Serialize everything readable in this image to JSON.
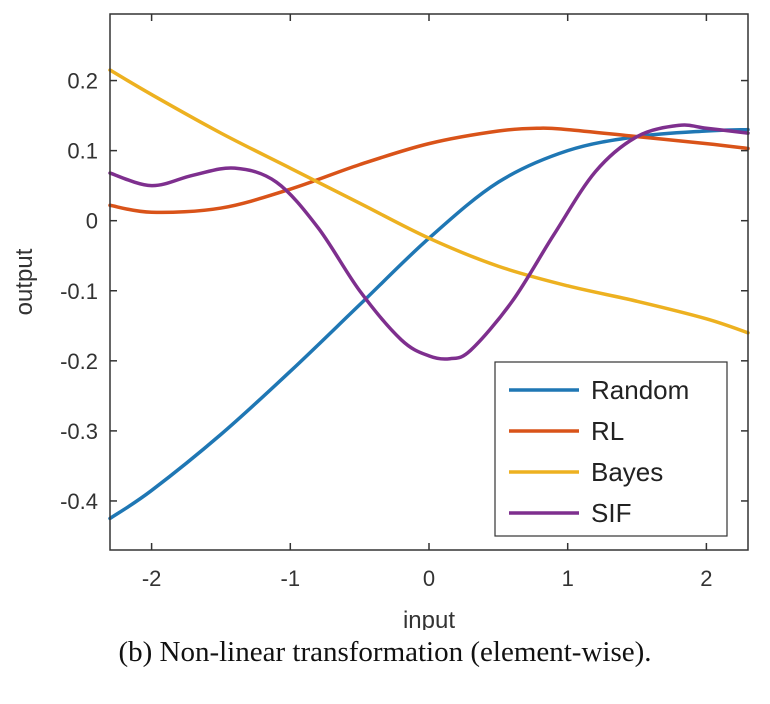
{
  "chart_data": {
    "type": "line",
    "xlabel": "input",
    "ylabel": "output",
    "xlim": [
      -2.3,
      2.3
    ],
    "ylim": [
      -0.47,
      0.295
    ],
    "xticks": [
      -2,
      -1,
      0,
      1,
      2
    ],
    "yticks": [
      -0.4,
      -0.3,
      -0.2,
      -0.1,
      0,
      0.1,
      0.2
    ],
    "grid": false,
    "legend_position": "bottom-right",
    "series": [
      {
        "name": "Random",
        "color": "#1f77b4",
        "x": [
          -2.3,
          -2.0,
          -1.5,
          -1.0,
          -0.5,
          0.0,
          0.5,
          1.0,
          1.5,
          2.0,
          2.3
        ],
        "y": [
          -0.425,
          -0.385,
          -0.305,
          -0.215,
          -0.12,
          -0.025,
          0.055,
          0.1,
          0.12,
          0.128,
          0.13
        ]
      },
      {
        "name": "RL",
        "color": "#d95319",
        "x": [
          -2.3,
          -2.0,
          -1.5,
          -1.0,
          -0.5,
          0.0,
          0.5,
          0.8,
          1.0,
          1.5,
          2.0,
          2.3
        ],
        "y": [
          0.022,
          0.012,
          0.018,
          0.045,
          0.08,
          0.11,
          0.128,
          0.132,
          0.13,
          0.12,
          0.11,
          0.103
        ]
      },
      {
        "name": "Bayes",
        "color": "#edb120",
        "x": [
          -2.3,
          -2.0,
          -1.5,
          -1.0,
          -0.5,
          0.0,
          0.5,
          1.0,
          1.5,
          2.0,
          2.3
        ],
        "y": [
          0.215,
          0.18,
          0.125,
          0.075,
          0.025,
          -0.025,
          -0.065,
          -0.093,
          -0.115,
          -0.14,
          -0.16
        ]
      },
      {
        "name": "SIF",
        "color": "#7e2f8e",
        "x": [
          -2.3,
          -2.0,
          -1.7,
          -1.4,
          -1.1,
          -0.8,
          -0.5,
          -0.2,
          0.0,
          0.15,
          0.3,
          0.6,
          0.9,
          1.2,
          1.5,
          1.8,
          2.0,
          2.3
        ],
        "y": [
          0.068,
          0.05,
          0.065,
          0.075,
          0.055,
          -0.01,
          -0.1,
          -0.17,
          -0.193,
          -0.197,
          -0.185,
          -0.115,
          -0.02,
          0.07,
          0.12,
          0.136,
          0.132,
          0.125
        ]
      }
    ]
  },
  "caption": "(b)  Non-linear transformation (element-wise)."
}
